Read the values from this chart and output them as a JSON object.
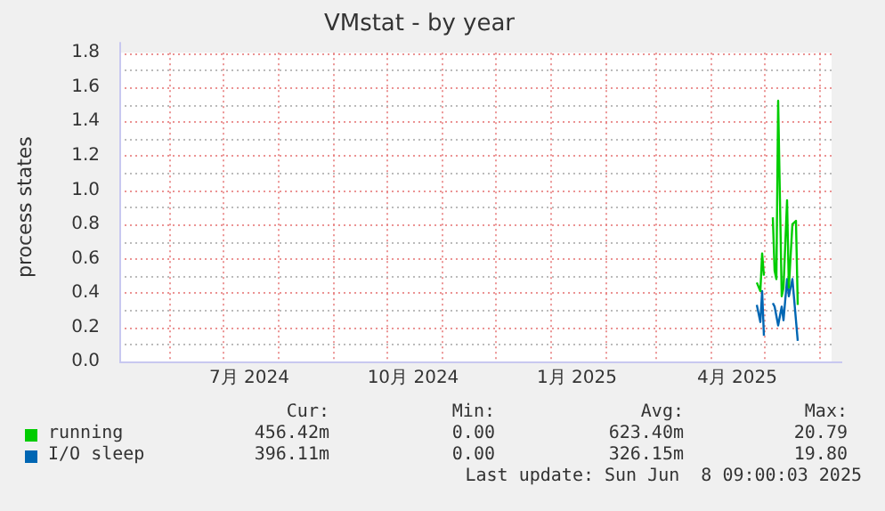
{
  "chart_data": {
    "type": "line",
    "title": "VMstat - by year",
    "ylabel": "process states",
    "xlim": [
      "2024-05-04",
      "2025-06-08"
    ],
    "xticks": [
      {
        "value": "2024-06-01",
        "label": null
      },
      {
        "value": "2024-07-01",
        "label": null
      },
      {
        "value": "2024-07-16",
        "label": "7月 2024"
      },
      {
        "value": "2024-08-01",
        "label": null
      },
      {
        "value": "2024-09-01",
        "label": null
      },
      {
        "value": "2024-10-01",
        "label": null
      },
      {
        "value": "2024-10-16",
        "label": "10月 2024"
      },
      {
        "value": "2024-11-01",
        "label": null
      },
      {
        "value": "2024-12-01",
        "label": null
      },
      {
        "value": "2025-01-01",
        "label": null
      },
      {
        "value": "2025-01-16",
        "label": "1月 2025"
      },
      {
        "value": "2025-02-01",
        "label": null
      },
      {
        "value": "2025-03-01",
        "label": null
      },
      {
        "value": "2025-04-01",
        "label": null
      },
      {
        "value": "2025-04-16",
        "label": "4月 2025"
      },
      {
        "value": "2025-05-01",
        "label": null
      },
      {
        "value": "2025-06-01",
        "label": null
      }
    ],
    "ylim": [
      0,
      1.8
    ],
    "yticks": [
      {
        "value": 0,
        "label": "0.0"
      },
      {
        "value": 0.1,
        "label": null
      },
      {
        "value": 0.2,
        "label": "0.2"
      },
      {
        "value": 0.3,
        "label": null
      },
      {
        "value": 0.4,
        "label": "0.4"
      },
      {
        "value": 0.5,
        "label": null
      },
      {
        "value": 0.6,
        "label": "0.6"
      },
      {
        "value": 0.7,
        "label": null
      },
      {
        "value": 0.8,
        "label": "0.8"
      },
      {
        "value": 0.9,
        "label": null
      },
      {
        "value": 1.0,
        "label": "1.0"
      },
      {
        "value": 1.1,
        "label": null
      },
      {
        "value": 1.2,
        "label": "1.2"
      },
      {
        "value": 1.3,
        "label": null
      },
      {
        "value": 1.4,
        "label": "1.4"
      },
      {
        "value": 1.5,
        "label": null
      },
      {
        "value": 1.6,
        "label": "1.6"
      },
      {
        "value": 1.7,
        "label": null
      },
      {
        "value": 1.8,
        "label": "1.8"
      }
    ],
    "grid": true,
    "legend": "bottom",
    "marker": "none",
    "line_style": "solid",
    "series": [
      {
        "name": "running",
        "color": "#00cc00",
        "x": [
          "2025-04-27",
          "2025-04-29",
          "2025-04-30",
          "2025-05-01",
          "2025-05-03",
          "2025-05-06",
          "2025-05-07",
          "2025-05-08",
          "2025-05-09",
          "2025-05-11",
          "2025-05-12",
          "2025-05-14",
          "2025-05-15",
          "2025-05-17",
          "2025-05-19",
          "2025-05-20"
        ],
        "values": [
          0.46,
          0.41,
          0.63,
          0.5,
          null,
          0.84,
          0.53,
          0.48,
          1.52,
          0.38,
          0.43,
          0.94,
          0.43,
          0.8,
          0.82,
          0.33
        ]
      },
      {
        "name": "I/O sleep",
        "color": "#0066b3",
        "x": [
          "2025-04-27",
          "2025-04-29",
          "2025-04-30",
          "2025-05-01",
          "2025-05-03",
          "2025-05-06",
          "2025-05-07",
          "2025-05-09",
          "2025-05-11",
          "2025-05-12",
          "2025-05-14",
          "2025-05-15",
          "2025-05-17",
          "2025-05-20"
        ],
        "values": [
          0.33,
          0.23,
          0.41,
          0.15,
          null,
          0.34,
          0.32,
          0.21,
          0.32,
          0.24,
          0.48,
          0.38,
          0.48,
          0.12
        ]
      }
    ],
    "annotations": [
      "Cur:",
      "Min:",
      "Avg:",
      "Max:",
      "456.42m",
      "0.00",
      "623.40m",
      "20.79",
      "396.11m",
      "0.00",
      "326.15m",
      "19.80",
      "Last update: Sun Jun  8 09:00:03 2025"
    ]
  }
}
